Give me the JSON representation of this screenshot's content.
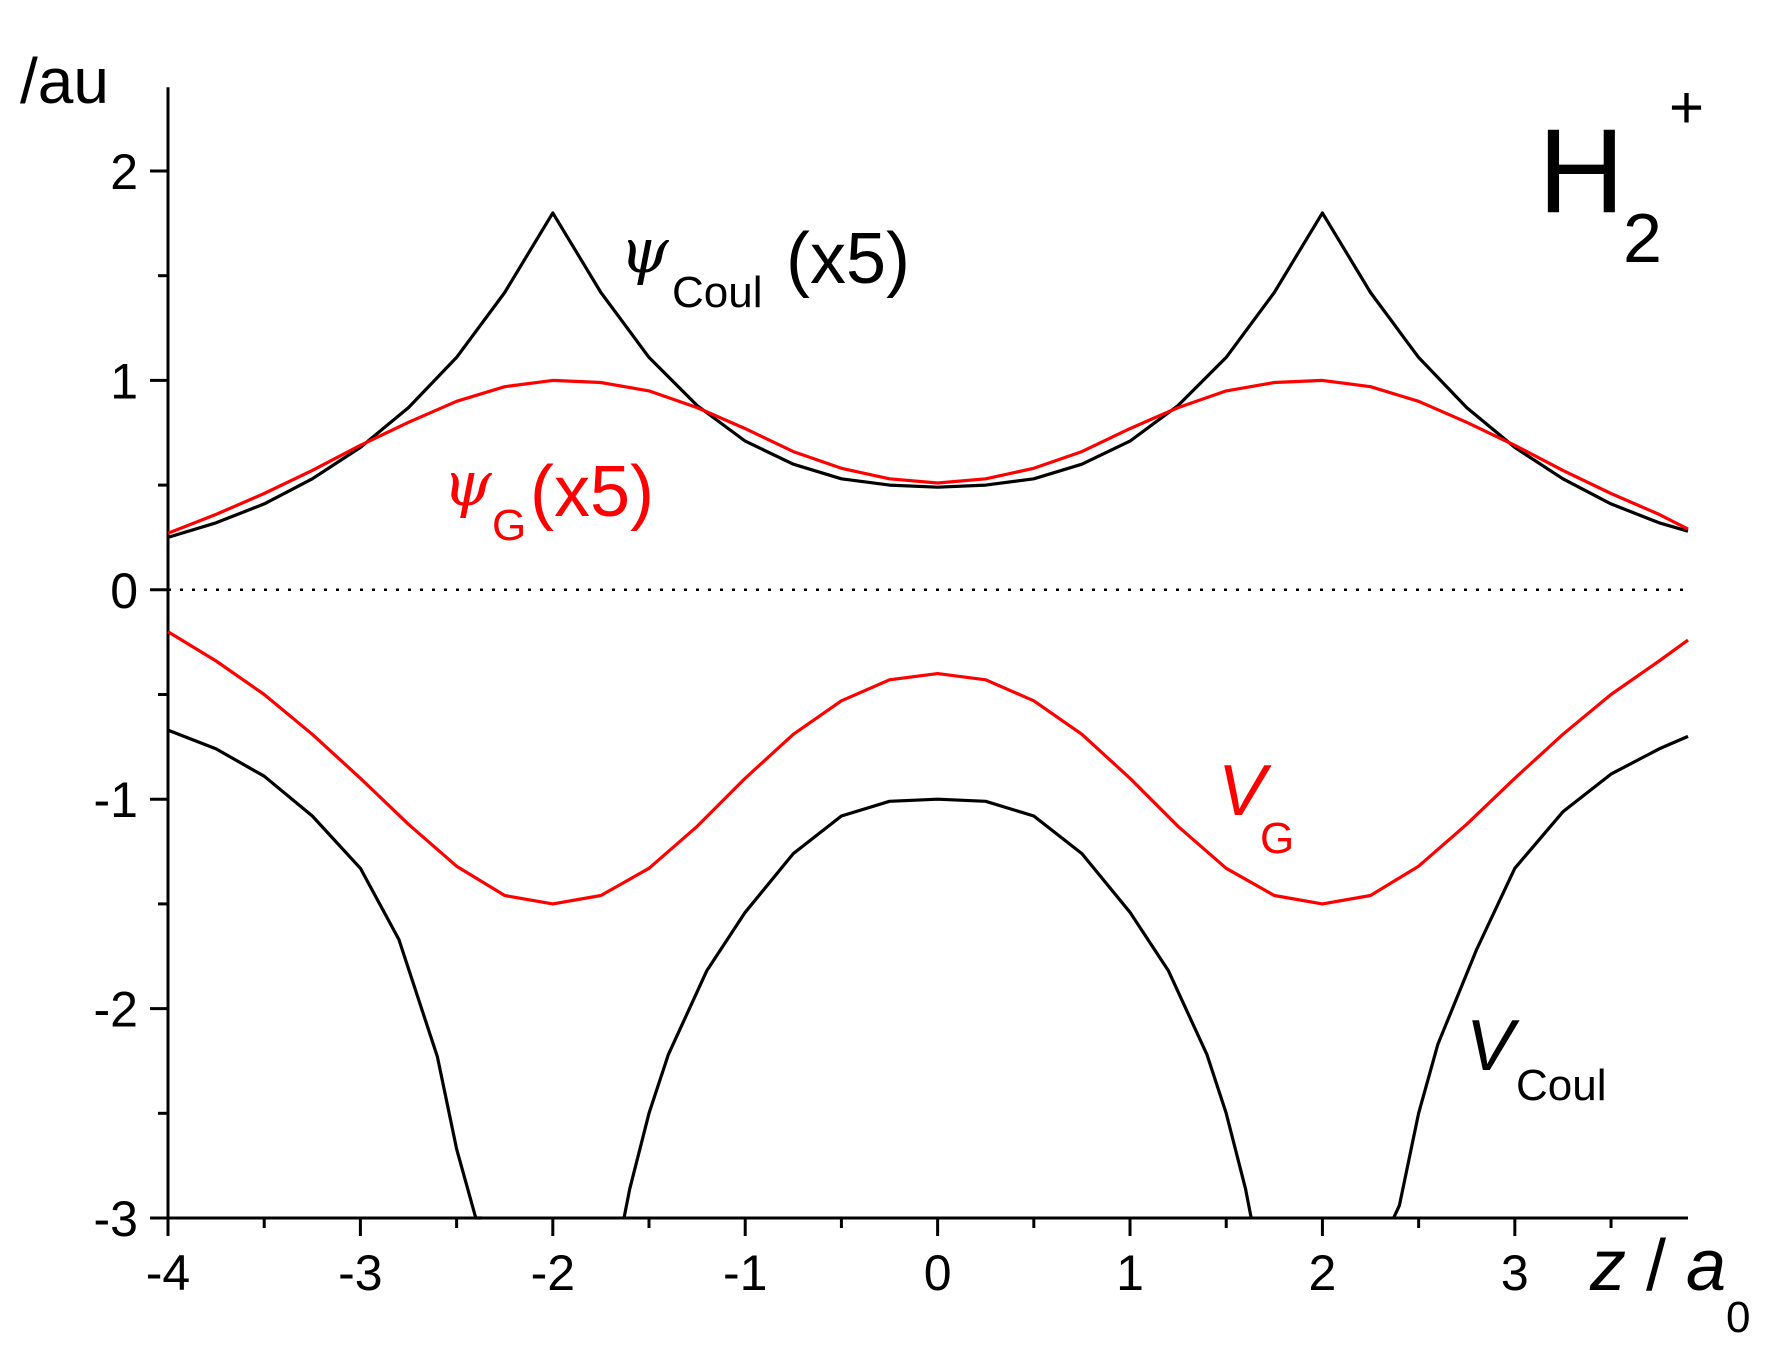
{
  "chart_data": {
    "type": "line",
    "title": "H₂⁺",
    "title_main": "H",
    "title_sub": "2",
    "title_sup": "+",
    "xlabel": {
      "var": "z",
      "sep": " /",
      "unit": "a",
      "unit_sub": "0"
    },
    "ylabel": "/au",
    "xlim": [
      -4,
      3.9
    ],
    "ylim": [
      -3,
      2.4
    ],
    "xticks": [
      -4,
      -3,
      -2,
      -1,
      0,
      1,
      2,
      3
    ],
    "xtick_labels": [
      "-4",
      "-3",
      "-2",
      "-1",
      "0",
      "1",
      "2",
      "3"
    ],
    "yticks": [
      -3,
      -2,
      -1,
      0,
      1,
      2
    ],
    "ytick_labels": [
      "-3",
      "-2",
      "-1",
      "0",
      "1",
      "2"
    ],
    "zero_line": {
      "y": 0,
      "style": "dotted"
    },
    "grid": false,
    "legend": "none (inline labels)",
    "colors": {
      "coulomb": "#000000",
      "gaussian": "#ff0000",
      "axis": "#000000"
    },
    "series": [
      {
        "name": "ψCoul(x5)",
        "label": {
          "greek": "ψ",
          "sub": "Coul",
          "suffix": "(x5)"
        },
        "color": "#000000",
        "x": [
          -4,
          -3.75,
          -3.5,
          -3.25,
          -3,
          -2.75,
          -2.5,
          -2.25,
          -2,
          -1.75,
          -1.5,
          -1.25,
          -1,
          -0.75,
          -0.5,
          -0.25,
          0,
          0.25,
          0.5,
          0.75,
          1,
          1.25,
          1.5,
          1.75,
          2,
          2.25,
          2.5,
          2.75,
          3,
          3.25,
          3.5,
          3.75,
          3.9
        ],
        "y": [
          0.25,
          0.32,
          0.41,
          0.53,
          0.68,
          0.87,
          1.11,
          1.42,
          1.8,
          1.42,
          1.11,
          0.88,
          0.71,
          0.6,
          0.53,
          0.5,
          0.49,
          0.5,
          0.53,
          0.6,
          0.71,
          0.88,
          1.11,
          1.42,
          1.8,
          1.42,
          1.11,
          0.87,
          0.68,
          0.53,
          0.41,
          0.32,
          0.28
        ]
      },
      {
        "name": "ψG(x5)",
        "label": {
          "greek": "ψ",
          "sub": "G",
          "suffix": "(x5)"
        },
        "color": "#ff0000",
        "x": [
          -4,
          -3.75,
          -3.5,
          -3.25,
          -3,
          -2.75,
          -2.5,
          -2.25,
          -2,
          -1.75,
          -1.5,
          -1.25,
          -1,
          -0.75,
          -0.5,
          -0.25,
          0,
          0.25,
          0.5,
          0.75,
          1,
          1.25,
          1.5,
          1.75,
          2,
          2.25,
          2.5,
          2.75,
          3,
          3.25,
          3.5,
          3.75,
          3.9
        ],
        "y": [
          0.27,
          0.36,
          0.46,
          0.57,
          0.69,
          0.8,
          0.9,
          0.97,
          1.0,
          0.99,
          0.95,
          0.87,
          0.77,
          0.66,
          0.58,
          0.53,
          0.51,
          0.53,
          0.58,
          0.66,
          0.77,
          0.87,
          0.95,
          0.99,
          1.0,
          0.97,
          0.9,
          0.8,
          0.69,
          0.57,
          0.46,
          0.36,
          0.29
        ]
      },
      {
        "name": "VG",
        "label": {
          "var": "V",
          "sub": "G"
        },
        "color": "#ff0000",
        "x": [
          -4,
          -3.75,
          -3.5,
          -3.25,
          -3,
          -2.75,
          -2.5,
          -2.25,
          -2,
          -1.75,
          -1.5,
          -1.25,
          -1,
          -0.75,
          -0.5,
          -0.25,
          0,
          0.25,
          0.5,
          0.75,
          1,
          1.25,
          1.5,
          1.75,
          2,
          2.25,
          2.5,
          2.75,
          3,
          3.25,
          3.5,
          3.75,
          3.9
        ],
        "y": [
          -0.2,
          -0.34,
          -0.5,
          -0.69,
          -0.9,
          -1.12,
          -1.32,
          -1.46,
          -1.5,
          -1.46,
          -1.33,
          -1.13,
          -0.9,
          -0.69,
          -0.53,
          -0.43,
          -0.4,
          -0.43,
          -0.53,
          -0.69,
          -0.9,
          -1.13,
          -1.33,
          -1.46,
          -1.5,
          -1.46,
          -1.32,
          -1.12,
          -0.9,
          -0.69,
          -0.5,
          -0.34,
          -0.24
        ]
      },
      {
        "name": "VCoul",
        "label": {
          "var": "V",
          "sub": "Coul"
        },
        "color": "#000000",
        "x": [
          -4,
          -3.75,
          -3.5,
          -3.25,
          -3,
          -2.8,
          -2.6,
          -2.5,
          -2.4,
          -2.37,
          null,
          -1.63,
          -1.6,
          -1.5,
          -1.4,
          -1.2,
          -1,
          -0.75,
          -0.5,
          -0.25,
          0,
          0.25,
          0.5,
          0.75,
          1,
          1.2,
          1.4,
          1.5,
          1.6,
          1.63,
          null,
          2.37,
          2.4,
          2.5,
          2.6,
          2.8,
          3,
          3.25,
          3.5,
          3.75,
          3.9
        ],
        "y": [
          -0.67,
          -0.76,
          -0.89,
          -1.08,
          -1.33,
          -1.67,
          -2.23,
          -2.67,
          -3.33,
          -3,
          null,
          -3,
          -2.86,
          -2.5,
          -2.22,
          -1.82,
          -1.54,
          -1.26,
          -1.08,
          -1.01,
          -1.0,
          -1.01,
          -1.08,
          -1.26,
          -1.54,
          -1.82,
          -2.22,
          -2.5,
          -2.86,
          -3,
          null,
          -3,
          -2.94,
          -2.5,
          -2.17,
          -1.72,
          -1.33,
          -1.06,
          -0.88,
          -0.76,
          -0.7
        ]
      }
    ]
  }
}
